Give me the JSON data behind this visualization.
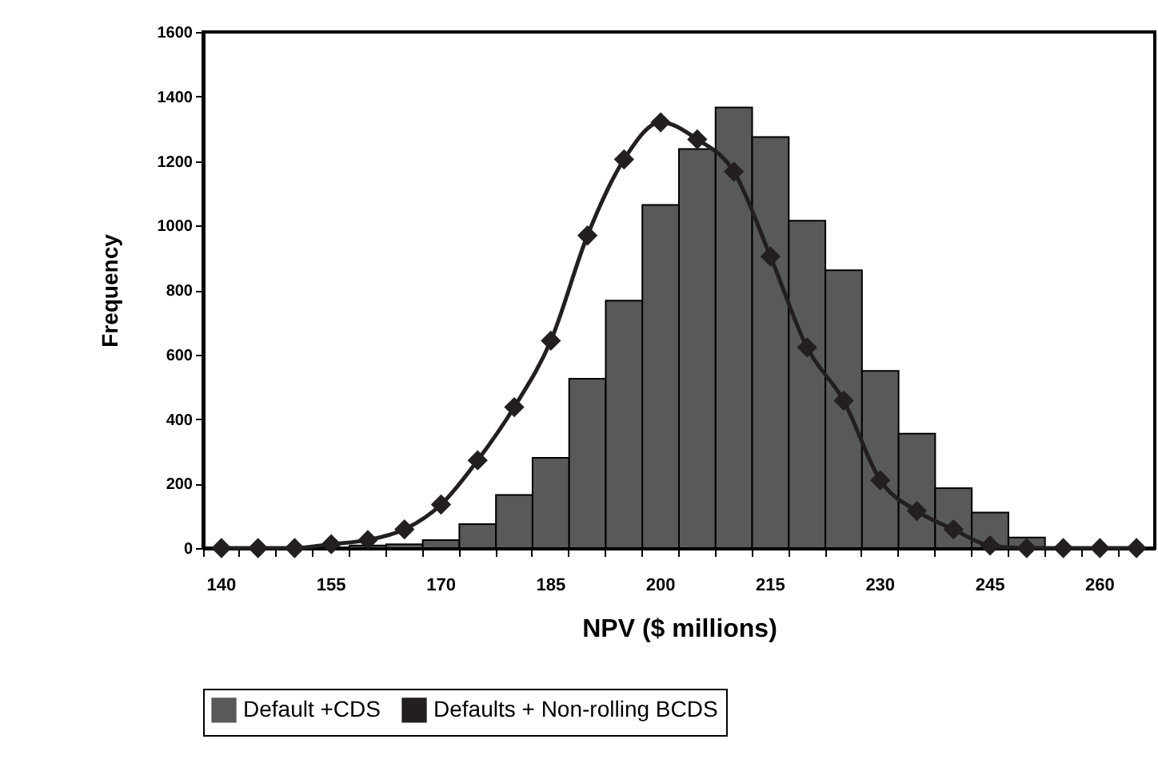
{
  "chart_data": {
    "type": "bar",
    "xlabel": "NPV ($ millions)",
    "ylabel": "Frequency",
    "categories": [
      "140",
      null,
      null,
      "155",
      null,
      null,
      "170",
      null,
      null,
      "185",
      null,
      null,
      "200",
      null,
      null,
      "215",
      null,
      null,
      "230",
      null,
      null,
      "245",
      null,
      null,
      "260",
      null
    ],
    "series": [
      {
        "name": "Default +CDS",
        "color": "#58595b",
        "values": [
          0,
          0,
          0,
          2,
          8,
          12,
          25,
          74,
          165,
          280,
          525,
          767,
          1064,
          1237,
          1366,
          1274,
          1015,
          861,
          549,
          355,
          186,
          110,
          33,
          null,
          0,
          0
        ]
      },
      {
        "name": "Defaults + Non-rolling BCDS",
        "type": "line",
        "color": "#231f20",
        "values": [
          0,
          0,
          0,
          12,
          25,
          58,
          135,
          272,
          437,
          643,
          969,
          1205,
          1320,
          1267,
          1167,
          904,
          622,
          457,
          210,
          115,
          58,
          8,
          0,
          0,
          0,
          0
        ]
      }
    ],
    "ylim": [
      0,
      1600
    ],
    "yticks": [
      0,
      200,
      400,
      600,
      800,
      1000,
      1200,
      1400,
      1600
    ],
    "grid": false,
    "legend": "bottom",
    "marker": "diamond",
    "line_style": "solid"
  }
}
